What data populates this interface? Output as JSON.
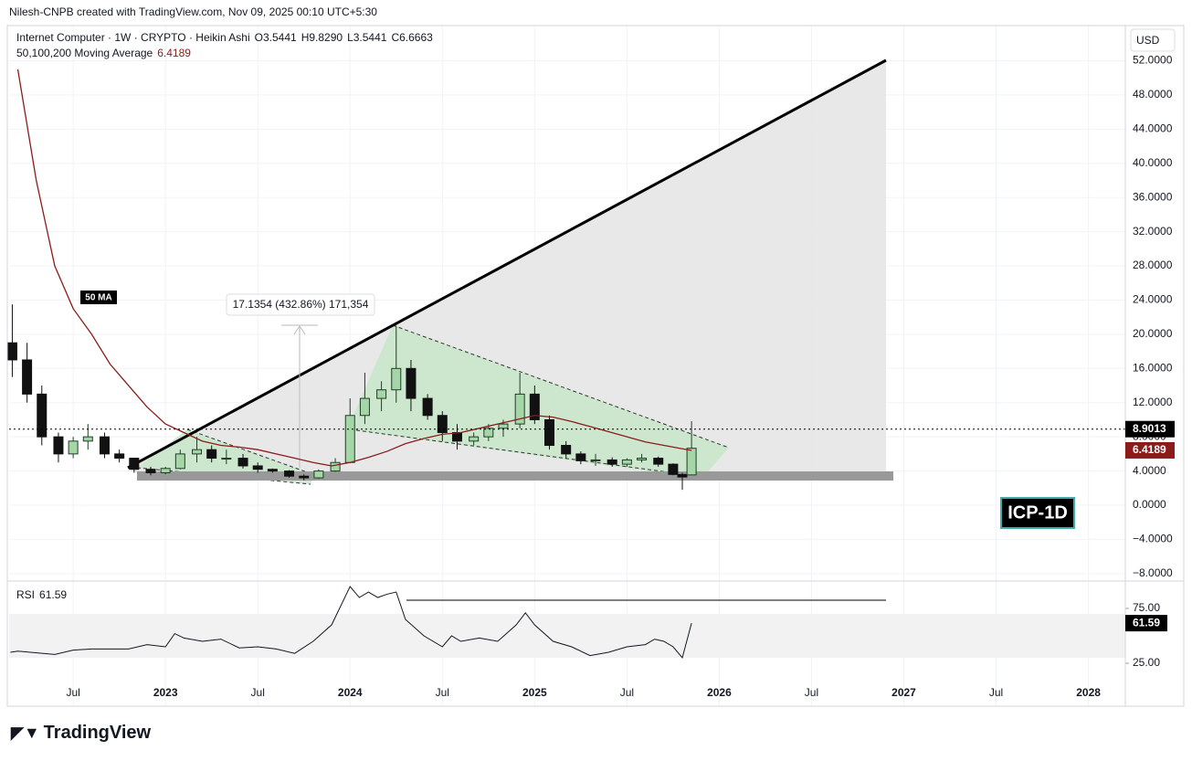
{
  "header": {
    "author": "Nilesh-CNPB created with TradingView.com, Nov 09, 2025 00:10 UTC+5:30"
  },
  "footer": {
    "logo": "TradingView"
  },
  "chart_data": [
    {
      "type": "candlestick",
      "title": "Internet Computer · 1W · CRYPTO · Heikin Ashi",
      "ohlc_labels": [
        "O3.5441",
        "H9.8290",
        "L3.5441",
        "C6.6663"
      ],
      "currency": "USD",
      "symbol_label": "ICP-1D",
      "annotation": "17.1354 (432.86%) 171,354",
      "up_color": "#1f3d25",
      "down_color": "#111111",
      "x": [
        2022.17,
        2022.25,
        2022.33,
        2022.42,
        2022.5,
        2022.58,
        2022.67,
        2022.75,
        2022.83,
        2022.92,
        2023.0,
        2023.08,
        2023.17,
        2023.25,
        2023.33,
        2023.42,
        2023.5,
        2023.58,
        2023.67,
        2023.75,
        2023.83,
        2023.92,
        2024.0,
        2024.08,
        2024.17,
        2024.25,
        2024.33,
        2024.42,
        2024.5,
        2024.58,
        2024.67,
        2024.75,
        2024.83,
        2024.92,
        2025.0,
        2025.08,
        2025.17,
        2025.25,
        2025.33,
        2025.42,
        2025.5,
        2025.58,
        2025.67,
        2025.75,
        2025.8,
        2025.85
      ],
      "open": [
        19,
        17,
        13,
        8,
        6,
        7.5,
        8,
        6,
        5.5,
        4.2,
        3.8,
        4.3,
        6,
        6.5,
        5.5,
        5.5,
        4.6,
        4.2,
        4.0,
        3.4,
        3.2,
        4.0,
        5.0,
        10.5,
        12.5,
        13.5,
        16,
        12.5,
        10.5,
        8.5,
        7.5,
        8,
        9,
        9.5,
        13,
        10,
        7,
        6,
        5.2,
        5.3,
        4.8,
        5.3,
        5.5,
        4.8,
        3.6,
        3.5441
      ],
      "high": [
        23.5,
        19,
        14,
        8.5,
        8,
        9.5,
        8.5,
        6.5,
        5.5,
        4.5,
        4.5,
        6.5,
        8,
        7,
        6.5,
        6,
        5,
        4.3,
        4.1,
        3.6,
        4.2,
        5.5,
        12.5,
        15.5,
        14.5,
        21,
        17,
        13,
        11,
        9.5,
        8.5,
        9.5,
        10,
        15.5,
        14,
        10.5,
        7.5,
        6.3,
        6,
        5.6,
        5.5,
        6,
        5.7,
        4.9,
        3.8,
        9.829
      ],
      "low": [
        15,
        12,
        7,
        5,
        5.5,
        6.5,
        5.5,
        5,
        3.8,
        3.5,
        3.6,
        4.2,
        5,
        5,
        4.8,
        4.3,
        3.8,
        3.8,
        3.2,
        2.9,
        3.1,
        3.9,
        4.9,
        9.5,
        11,
        12,
        11,
        10,
        7.5,
        6.5,
        7,
        7.5,
        8,
        9,
        9.5,
        6.5,
        5.5,
        4.8,
        4.6,
        4.5,
        4.5,
        5,
        4.5,
        3.5,
        1.8,
        3.5441
      ],
      "close": [
        17,
        13,
        8,
        6,
        7.5,
        8,
        6,
        5.5,
        4.2,
        3.8,
        4.3,
        6,
        6.5,
        5.5,
        5.5,
        4.6,
        4.2,
        4.0,
        3.4,
        3.2,
        4.0,
        5.0,
        10.5,
        12.5,
        13.5,
        16,
        12.5,
        10.5,
        8.5,
        7.5,
        8,
        9,
        9.5,
        13,
        10,
        7,
        6,
        5.2,
        5.3,
        4.8,
        5.3,
        5.5,
        4.8,
        3.6,
        3.3,
        6.6663
      ],
      "last_price": 8.9013,
      "ma": {
        "name": "50,100,200 Moving Average",
        "label": "50 MA",
        "value": 6.4189,
        "color": "#8b1c1c",
        "x": [
          2022.2,
          2022.3,
          2022.4,
          2022.5,
          2022.6,
          2022.7,
          2022.8,
          2022.9,
          2023.0,
          2023.1,
          2023.2,
          2023.3,
          2023.4,
          2023.5,
          2023.6,
          2023.7,
          2023.8,
          2023.9,
          2024.0,
          2024.1,
          2024.2,
          2024.3,
          2024.4,
          2024.5,
          2024.6,
          2024.7,
          2024.8,
          2024.9,
          2025.0,
          2025.1,
          2025.2,
          2025.3,
          2025.4,
          2025.5,
          2025.6,
          2025.7,
          2025.8,
          2025.85
        ],
        "values": [
          51,
          38,
          28,
          23,
          20,
          16.5,
          14,
          11.5,
          9.5,
          8.5,
          7.5,
          7,
          6.8,
          6.5,
          6,
          5.5,
          5,
          4.6,
          5,
          5.6,
          6.3,
          7.2,
          7.8,
          8.3,
          8.5,
          9,
          9.5,
          10,
          10.5,
          10.3,
          9.8,
          9.2,
          8.6,
          8,
          7.4,
          7,
          6.6,
          6.4189
        ]
      },
      "xlim": [
        2022.153,
        2028.2
      ],
      "xticks": [
        {
          "value": 2022.5,
          "label": "Jul"
        },
        2023,
        {
          "value": 2023.5,
          "label": "Jul"
        },
        2024,
        {
          "value": 2024.5,
          "label": "Jul"
        },
        2025,
        {
          "value": 2025.5,
          "label": "Jul"
        },
        2026,
        {
          "value": 2026.5,
          "label": "Jul"
        },
        2027,
        {
          "value": 2027.5,
          "label": "Jul"
        },
        2028
      ],
      "ylim": [
        -8.87,
        55.9
      ],
      "yticks": [
        {
          "value": -8,
          "label": "−8.0000"
        },
        {
          "value": -4,
          "label": "−4.0000"
        },
        {
          "value": 0,
          "label": "0.0000"
        },
        {
          "value": 4,
          "label": "4.0000"
        },
        {
          "value": 8,
          "label": "8.0000"
        },
        {
          "value": 12,
          "label": "12.0000"
        },
        {
          "value": 16,
          "label": "16.0000"
        },
        {
          "value": 20,
          "label": "20.0000"
        },
        {
          "value": 24,
          "label": "24.0000"
        },
        {
          "value": 28,
          "label": "28.0000"
        },
        {
          "value": 32,
          "label": "32.0000"
        },
        {
          "value": 36,
          "label": "36.0000"
        },
        {
          "value": 40,
          "label": "40.0000"
        },
        {
          "value": 44,
          "label": "44.0000"
        },
        {
          "value": 48,
          "label": "48.0000"
        },
        {
          "value": 52,
          "label": "52.0000"
        }
      ],
      "grid": true
    },
    {
      "type": "line",
      "title": "RSI",
      "value": 61.59,
      "color": "#131722",
      "band": [
        30,
        70
      ],
      "x": [
        2022.16,
        2022.2,
        2022.4,
        2022.5,
        2022.6,
        2022.8,
        2022.9,
        2023.0,
        2023.05,
        2023.1,
        2023.2,
        2023.3,
        2023.4,
        2023.5,
        2023.6,
        2023.7,
        2023.8,
        2023.9,
        2024.0,
        2024.05,
        2024.1,
        2024.15,
        2024.2,
        2024.25,
        2024.3,
        2024.4,
        2024.5,
        2024.55,
        2024.6,
        2024.7,
        2024.8,
        2024.9,
        2024.95,
        2025.0,
        2025.1,
        2025.2,
        2025.3,
        2025.4,
        2025.5,
        2025.6,
        2025.65,
        2025.7,
        2025.75,
        2025.8,
        2025.85
      ],
      "values": [
        35,
        36,
        33,
        37,
        38,
        38,
        42,
        40,
        52,
        48,
        45,
        47,
        39,
        40,
        38,
        34,
        45,
        60,
        95,
        85,
        90,
        85,
        88,
        90,
        65,
        50,
        40,
        50,
        45,
        48,
        45,
        60,
        71,
        60,
        45,
        40,
        32,
        35,
        40,
        42,
        47,
        45,
        40,
        30,
        61.59
      ],
      "ylim": [
        -14.2,
        99.2
      ],
      "yticks": [
        {
          "value": 75,
          "label": "75.00"
        },
        {
          "value": 25,
          "label": "25.00"
        }
      ]
    }
  ]
}
